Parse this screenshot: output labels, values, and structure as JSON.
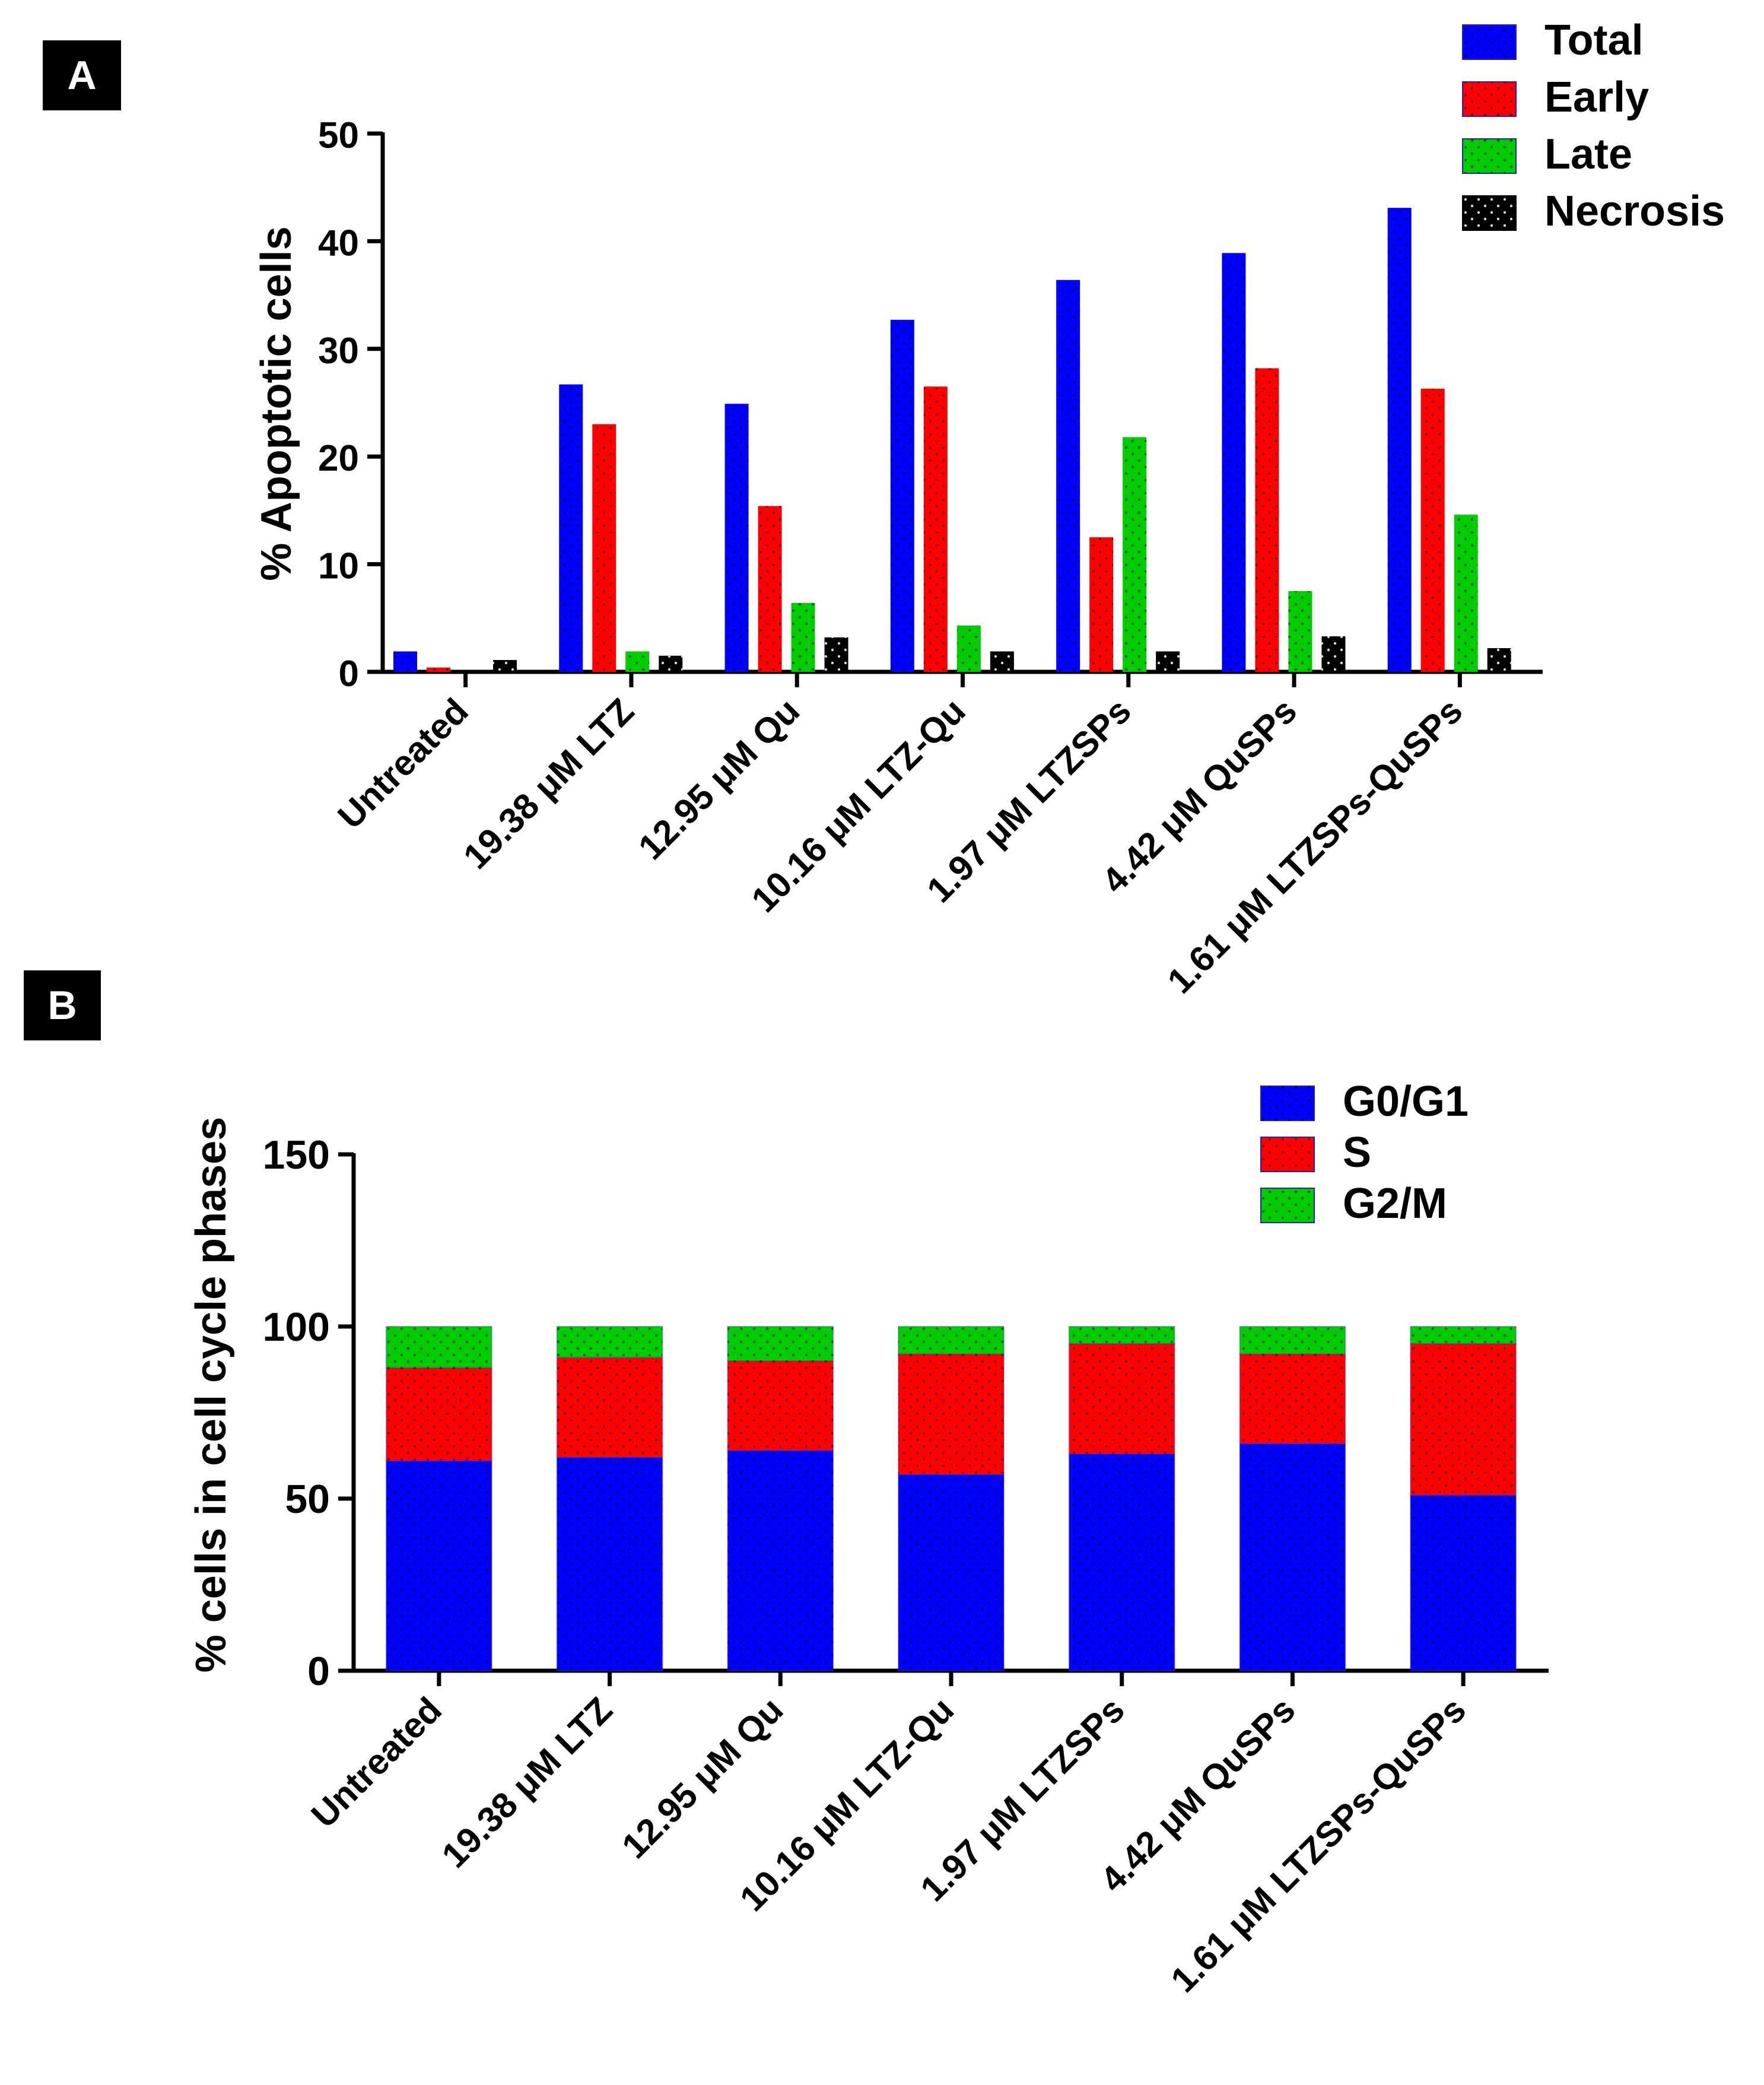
{
  "chart_data": [
    {
      "panel_label": "A",
      "type": "bar",
      "ylabel": "% Apoptotic cells",
      "xlabel": "",
      "ylim": [
        0,
        50
      ],
      "yticks": [
        0,
        10,
        20,
        30,
        40,
        50
      ],
      "categories": [
        "Untreated",
        "19.38 μM LTZ",
        "12.95 μM Qu",
        "10.16 μM LTZ-Qu",
        "1.97 μM LTZSPs",
        "4.42 μM QuSPs",
        "1.61 μM LTZSPs-QuSPs"
      ],
      "series": [
        {
          "name": "Total",
          "color": "#0000ff",
          "values": [
            1.9,
            26.7,
            24.9,
            32.7,
            36.4,
            38.9,
            43.1
          ]
        },
        {
          "name": "Early",
          "color": "#ff0000",
          "values": [
            0.4,
            23.0,
            15.4,
            26.5,
            12.5,
            28.2,
            26.3
          ]
        },
        {
          "name": "Late",
          "color": "#00cc00",
          "values": [
            0.0,
            1.9,
            6.4,
            4.3,
            21.8,
            7.5,
            14.6
          ]
        },
        {
          "name": "Necrosis",
          "color": "#000000",
          "values": [
            1.1,
            1.5,
            3.2,
            1.9,
            1.9,
            3.3,
            2.2
          ]
        }
      ],
      "legend": "top-right",
      "grid": false
    },
    {
      "panel_label": "B",
      "type": "bar",
      "stacked": true,
      "ylabel": "% cells in cell cycle phases",
      "xlabel": "",
      "ylim": [
        0,
        150
      ],
      "yticks": [
        0,
        50,
        100,
        150
      ],
      "categories": [
        "Untreated",
        "19.38  μM LTZ",
        "12.95 μM Qu",
        "10.16 μM LTZ-Qu",
        "1.97 μM LTZSPs",
        "4.42 μM QuSPs",
        "1.61 μM LTZSPs-QuSPs"
      ],
      "series": [
        {
          "name": "G0/G1",
          "color": "#0000ff",
          "values": [
            61,
            62,
            64,
            57,
            63,
            66,
            51
          ]
        },
        {
          "name": "S",
          "color": "#ff0000",
          "values": [
            27,
            29,
            26,
            35,
            32,
            26,
            44
          ]
        },
        {
          "name": "G2/M",
          "color": "#00cc00",
          "values": [
            12,
            9,
            10,
            8,
            5,
            8,
            5
          ]
        }
      ],
      "legend": "top-right",
      "grid": false
    }
  ]
}
